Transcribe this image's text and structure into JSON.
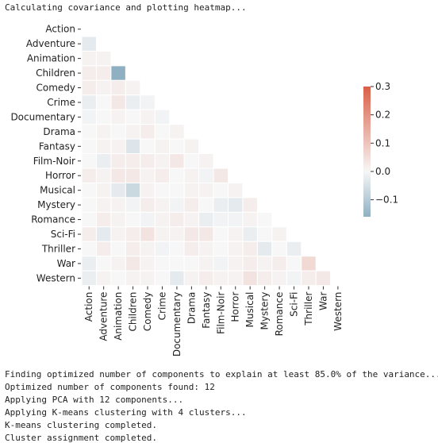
{
  "console": {
    "header": "Calculating covariance and plotting heatmap...",
    "footer_lines": [
      "Finding optimized number of components to explain at least 85.0% of the variance...",
      "Optimized number of components found: 12",
      "Applying PCA with 12 components...",
      "Applying K-means clustering with 4 clusters...",
      "K-means clustering completed.",
      "Cluster assignment completed."
    ]
  },
  "chart_data": {
    "type": "heatmap",
    "title": "",
    "mask": "upper-triangle",
    "labels": [
      "Action",
      "Adventure",
      "Animation",
      "Children",
      "Comedy",
      "Crime",
      "Documentary",
      "Drama",
      "Fantasy",
      "Film-Noir",
      "Horror",
      "Musical",
      "Mystery",
      "Romance",
      "Sci-Fi",
      "Thriller",
      "War",
      "Western"
    ],
    "colormap": {
      "low": "#8fb0c2",
      "mid": "#f7f7f7",
      "high": "#d95f48"
    },
    "vmin": -0.16,
    "vmax": 0.3,
    "colorbar_ticks": [
      0.3,
      0.2,
      0.1,
      0.0,
      -0.1
    ],
    "colorbar_tick_labels": [
      "0.3",
      "0.2",
      "0.1",
      "0.0",
      "−0.1"
    ],
    "values": [
      [],
      [
        -0.03
      ],
      [
        0.01,
        0.01
      ],
      [
        0.02,
        0.02,
        -0.16
      ],
      [
        0.02,
        0.01,
        0.02,
        0.01
      ],
      [
        -0.02,
        0.0,
        0.03,
        -0.02,
        -0.01
      ],
      [
        -0.01,
        0.0,
        0.01,
        0.0,
        0.01,
        -0.01
      ],
      [
        0.0,
        0.01,
        0.0,
        0.01,
        0.02,
        0.0,
        0.01
      ],
      [
        0.0,
        0.01,
        0.01,
        -0.04,
        0.0,
        0.01,
        0.0,
        0.01
      ],
      [
        0.0,
        -0.02,
        0.02,
        0.02,
        0.02,
        0.01,
        0.03,
        0.0,
        0.01
      ],
      [
        0.02,
        0.01,
        0.03,
        0.03,
        0.01,
        0.02,
        0.0,
        0.01,
        -0.01,
        0.03
      ],
      [
        0.0,
        0.01,
        -0.03,
        -0.07,
        0.01,
        0.0,
        0.0,
        0.01,
        0.01,
        0.0,
        0.01
      ],
      [
        0.0,
        0.01,
        0.01,
        -0.01,
        0.02,
        0.01,
        -0.01,
        0.02,
        0.0,
        -0.02,
        -0.03,
        0.02
      ],
      [
        0.0,
        0.02,
        0.01,
        0.0,
        -0.01,
        0.01,
        0.02,
        0.01,
        -0.02,
        -0.01,
        -0.01,
        0.01,
        0.0
      ],
      [
        0.02,
        -0.03,
        0.01,
        0.02,
        0.04,
        0.01,
        0.01,
        0.03,
        0.03,
        0.0,
        0.01,
        -0.02,
        0.0,
        0.01
      ],
      [
        0.0,
        0.02,
        0.0,
        0.02,
        0.01,
        -0.01,
        0.0,
        0.02,
        0.01,
        0.0,
        0.01,
        0.02,
        -0.03,
        0.0,
        -0.02
      ],
      [
        -0.02,
        0.0,
        0.01,
        0.03,
        0.01,
        0.0,
        0.0,
        0.0,
        0.01,
        -0.01,
        0.01,
        0.02,
        0.01,
        0.02,
        0.0,
        0.06
      ],
      [
        -0.02,
        0.01,
        0.0,
        0.01,
        0.01,
        0.0,
        -0.03,
        0.01,
        0.02,
        0.01,
        0.01,
        0.04,
        0.02,
        0.01,
        -0.01,
        0.02,
        0.03
      ]
    ]
  }
}
